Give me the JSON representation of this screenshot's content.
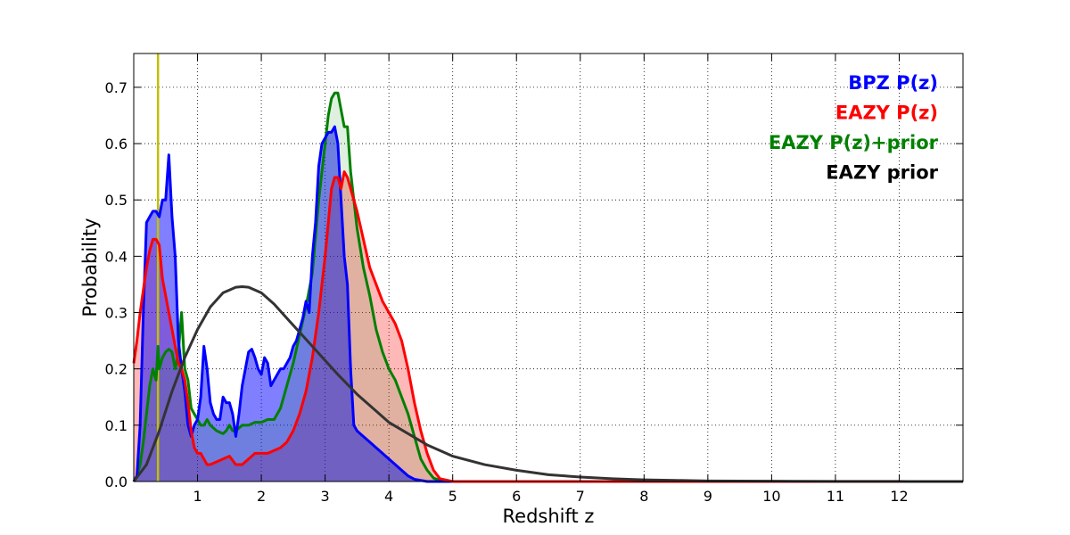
{
  "chart_data": {
    "type": "area",
    "xlabel": "Redshift z",
    "ylabel": "Probability",
    "xlim": [
      0,
      13
    ],
    "ylim": [
      0,
      0.76
    ],
    "xticks": [
      1,
      2,
      3,
      4,
      5,
      6,
      7,
      8,
      9,
      10,
      11,
      12
    ],
    "yticks": [
      0.0,
      0.1,
      0.2,
      0.3,
      0.4,
      0.5,
      0.6,
      0.7
    ],
    "xtick_labels": [
      "1",
      "2",
      "3",
      "4",
      "5",
      "6",
      "7",
      "8",
      "9",
      "10",
      "11",
      "12"
    ],
    "ytick_labels": [
      "0.0",
      "0.1",
      "0.2",
      "0.3",
      "0.4",
      "0.5",
      "0.6",
      "0.7"
    ],
    "grid": true,
    "legend_position": "top-right",
    "vline": {
      "x": 0.38,
      "color": "#bfbf00"
    },
    "series": [
      {
        "name": "BPZ P(z)",
        "color": "#0000ff",
        "fill": "#0000ff",
        "fill_opacity": 0.5,
        "x": [
          0.0,
          0.05,
          0.1,
          0.15,
          0.2,
          0.25,
          0.3,
          0.35,
          0.4,
          0.45,
          0.5,
          0.55,
          0.6,
          0.65,
          0.7,
          0.75,
          0.8,
          0.85,
          0.9,
          0.95,
          1.0,
          1.05,
          1.1,
          1.15,
          1.2,
          1.25,
          1.3,
          1.35,
          1.4,
          1.45,
          1.5,
          1.55,
          1.6,
          1.65,
          1.7,
          1.75,
          1.8,
          1.85,
          1.9,
          1.95,
          2.0,
          2.05,
          2.1,
          2.15,
          2.2,
          2.25,
          2.3,
          2.35,
          2.4,
          2.45,
          2.5,
          2.55,
          2.6,
          2.65,
          2.7,
          2.75,
          2.8,
          2.85,
          2.9,
          2.95,
          3.0,
          3.05,
          3.1,
          3.15,
          3.2,
          3.25,
          3.3,
          3.35,
          3.4,
          3.45,
          3.5,
          3.55,
          3.6,
          3.7,
          3.8,
          3.9,
          4.0,
          4.1,
          4.2,
          4.3,
          4.4,
          4.5,
          4.6,
          4.7,
          4.8,
          5.0,
          13.0
        ],
        "values": [
          0.0,
          0.01,
          0.1,
          0.3,
          0.46,
          0.47,
          0.48,
          0.48,
          0.47,
          0.5,
          0.5,
          0.58,
          0.47,
          0.4,
          0.25,
          0.2,
          0.16,
          0.1,
          0.08,
          0.1,
          0.11,
          0.15,
          0.24,
          0.2,
          0.14,
          0.12,
          0.11,
          0.11,
          0.15,
          0.14,
          0.14,
          0.12,
          0.08,
          0.12,
          0.17,
          0.2,
          0.23,
          0.235,
          0.22,
          0.2,
          0.19,
          0.22,
          0.21,
          0.17,
          0.18,
          0.19,
          0.2,
          0.2,
          0.21,
          0.22,
          0.24,
          0.25,
          0.27,
          0.29,
          0.32,
          0.3,
          0.4,
          0.46,
          0.56,
          0.6,
          0.61,
          0.62,
          0.62,
          0.63,
          0.6,
          0.5,
          0.4,
          0.35,
          0.2,
          0.1,
          0.09,
          0.085,
          0.08,
          0.07,
          0.06,
          0.05,
          0.04,
          0.03,
          0.02,
          0.01,
          0.004,
          0.002,
          0.0,
          0.0,
          0.0,
          0.0,
          0.0
        ]
      },
      {
        "name": "EAZY P(z)",
        "color": "#ff0000",
        "fill": "#ff0000",
        "fill_opacity": 0.28,
        "x": [
          0.0,
          0.05,
          0.1,
          0.15,
          0.2,
          0.25,
          0.3,
          0.35,
          0.4,
          0.45,
          0.5,
          0.55,
          0.6,
          0.65,
          0.7,
          0.75,
          0.8,
          0.85,
          0.9,
          0.95,
          1.0,
          1.05,
          1.1,
          1.15,
          1.2,
          1.3,
          1.4,
          1.5,
          1.6,
          1.7,
          1.8,
          1.9,
          2.0,
          2.1,
          2.2,
          2.3,
          2.4,
          2.5,
          2.6,
          2.7,
          2.8,
          2.9,
          3.0,
          3.1,
          3.15,
          3.2,
          3.25,
          3.3,
          3.35,
          3.4,
          3.5,
          3.6,
          3.7,
          3.8,
          3.9,
          4.0,
          4.1,
          4.2,
          4.3,
          4.4,
          4.5,
          4.6,
          4.7,
          4.8,
          5.0,
          13.0
        ],
        "values": [
          0.21,
          0.25,
          0.3,
          0.34,
          0.38,
          0.41,
          0.43,
          0.43,
          0.42,
          0.36,
          0.33,
          0.3,
          0.27,
          0.24,
          0.21,
          0.2,
          0.18,
          0.14,
          0.09,
          0.06,
          0.05,
          0.05,
          0.04,
          0.03,
          0.03,
          0.035,
          0.04,
          0.045,
          0.03,
          0.03,
          0.04,
          0.05,
          0.05,
          0.05,
          0.055,
          0.06,
          0.07,
          0.09,
          0.12,
          0.16,
          0.22,
          0.3,
          0.4,
          0.52,
          0.54,
          0.54,
          0.52,
          0.55,
          0.54,
          0.52,
          0.48,
          0.43,
          0.38,
          0.35,
          0.32,
          0.3,
          0.28,
          0.25,
          0.2,
          0.14,
          0.09,
          0.05,
          0.02,
          0.005,
          0.0,
          0.0
        ]
      },
      {
        "name": "EAZY P(z)+prior",
        "color": "#008000",
        "fill": "#008000",
        "fill_opacity": 0.12,
        "x": [
          0.0,
          0.05,
          0.1,
          0.15,
          0.2,
          0.25,
          0.3,
          0.35,
          0.38,
          0.4,
          0.45,
          0.5,
          0.55,
          0.6,
          0.65,
          0.7,
          0.75,
          0.8,
          0.85,
          0.9,
          0.95,
          1.0,
          1.05,
          1.1,
          1.15,
          1.2,
          1.3,
          1.4,
          1.45,
          1.5,
          1.55,
          1.6,
          1.7,
          1.8,
          1.9,
          2.0,
          2.1,
          2.2,
          2.3,
          2.4,
          2.5,
          2.6,
          2.7,
          2.8,
          2.9,
          3.0,
          3.05,
          3.1,
          3.15,
          3.2,
          3.25,
          3.3,
          3.35,
          3.4,
          3.5,
          3.6,
          3.7,
          3.8,
          3.9,
          4.0,
          4.1,
          4.2,
          4.3,
          4.4,
          4.5,
          4.6,
          4.7,
          4.8,
          5.0,
          13.0
        ],
        "values": [
          0.0,
          0.01,
          0.03,
          0.07,
          0.12,
          0.17,
          0.2,
          0.18,
          0.24,
          0.2,
          0.22,
          0.23,
          0.235,
          0.23,
          0.2,
          0.23,
          0.3,
          0.2,
          0.18,
          0.13,
          0.12,
          0.11,
          0.1,
          0.1,
          0.11,
          0.1,
          0.09,
          0.085,
          0.09,
          0.1,
          0.09,
          0.09,
          0.1,
          0.1,
          0.105,
          0.105,
          0.11,
          0.11,
          0.13,
          0.17,
          0.21,
          0.26,
          0.31,
          0.37,
          0.5,
          0.6,
          0.65,
          0.68,
          0.69,
          0.69,
          0.66,
          0.63,
          0.63,
          0.55,
          0.45,
          0.38,
          0.33,
          0.27,
          0.23,
          0.2,
          0.18,
          0.15,
          0.12,
          0.08,
          0.04,
          0.02,
          0.006,
          0.002,
          0.0,
          0.0
        ]
      },
      {
        "name": "EAZY prior",
        "color": "#333333",
        "fill": "none",
        "fill_opacity": 0,
        "x": [
          0.0,
          0.2,
          0.4,
          0.6,
          0.8,
          1.0,
          1.2,
          1.4,
          1.6,
          1.7,
          1.8,
          2.0,
          2.2,
          2.4,
          2.6,
          2.8,
          3.0,
          3.2,
          3.5,
          3.8,
          4.0,
          4.3,
          4.6,
          5.0,
          5.5,
          6.0,
          6.5,
          7.0,
          7.5,
          8.0,
          8.5,
          9.0,
          10.0,
          11.0,
          12.0,
          13.0
        ],
        "values": [
          0.0,
          0.03,
          0.09,
          0.16,
          0.22,
          0.27,
          0.31,
          0.335,
          0.345,
          0.346,
          0.345,
          0.335,
          0.315,
          0.29,
          0.265,
          0.24,
          0.215,
          0.19,
          0.155,
          0.125,
          0.105,
          0.085,
          0.065,
          0.045,
          0.03,
          0.02,
          0.012,
          0.008,
          0.005,
          0.003,
          0.002,
          0.001,
          0.0005,
          0.0002,
          0.0001,
          0.0
        ]
      }
    ],
    "fill_order": [
      "EAZY P(z)",
      "BPZ P(z)",
      "EAZY P(z)+prior"
    ],
    "line_order": [
      "EAZY P(z)+prior",
      "BPZ P(z)",
      "EAZY P(z)",
      "EAZY prior"
    ]
  }
}
